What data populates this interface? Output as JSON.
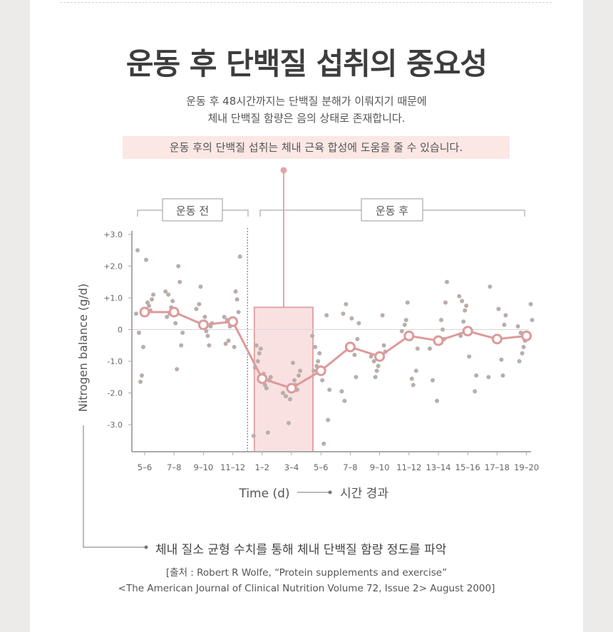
{
  "title": "운동 후 단백질 섭취의 중요성",
  "subtitle_line1": "운동 후 48시간까지는 단백질 분해가 이뤄지기 때문에",
  "subtitle_line2": "체내 단백질 함량은 음의 상태로 존재합니다.",
  "highlight": "운동 후의 단백질 섭취는 체내 근육 합성에 도움을 줄 수 있습니다.",
  "footer_note": "체내 질소 균형 수치를 통해 체내 단백질 함량 정도를 파악",
  "source_line1": "[출처 : Robert R Wolfe, “Protein supplements and exercise”",
  "source_line2": "<The American Journal of Clinical Nutrition Volume 72, Issue 2> August 2000]",
  "colors": {
    "accent": "#e2a6a6",
    "accent_line": "#dd9a9a",
    "box_fill": "#f9e1e1",
    "scatter": "#b8aeaa",
    "axis": "#aaaaaa"
  },
  "chart_data": {
    "type": "line",
    "ylabel": "Nitrogen balance (g/d)",
    "xlabel": "Time (d)",
    "xlabel_arrow_text": "시간 경과",
    "period_before": "운동 전",
    "period_after": "운동 후",
    "ylim": [
      -4.0,
      3.2
    ],
    "y_ticks": [
      {
        "value": 3,
        "label": "+3.0"
      },
      {
        "value": 2,
        "label": "+2.0"
      },
      {
        "value": 1,
        "label": "+1.0"
      },
      {
        "value": 0,
        "label": "0"
      },
      {
        "value": -1,
        "label": "-1.0"
      },
      {
        "value": -2,
        "label": "-2.0"
      },
      {
        "value": -3,
        "label": "-3.0"
      }
    ],
    "categories": [
      "5–6",
      "7–8",
      "9–10",
      "11–12",
      "1–2",
      "3–4",
      "5–6",
      "7–8",
      "9–10",
      "11–12",
      "13–14",
      "15–16",
      "17–18",
      "19–20"
    ],
    "before_count": 4,
    "highlighted_categories": [
      "1–2",
      "3–4"
    ],
    "highlight_box_top_value": 0.7,
    "grid": false,
    "series": [
      {
        "values": [
          0.55,
          0.55,
          0.15,
          0.25,
          -1.55,
          -1.85,
          -1.3,
          -0.55,
          -0.85,
          -0.2,
          -0.35,
          -0.05,
          -0.3,
          -0.2
        ]
      }
    ],
    "scatter": [
      [
        2.5,
        2.2,
        1.1,
        0.95,
        0.85,
        0.75,
        0.6,
        0.5,
        -0.1,
        -0.55,
        -1.45,
        -1.65
      ],
      [
        2.0,
        1.5,
        1.2,
        1.1,
        0.9,
        0.7,
        0.5,
        0.4,
        0.2,
        -0.1,
        -0.5,
        -1.25
      ],
      [
        1.35,
        0.8,
        0.65,
        0.4,
        0.2,
        0.1,
        -0.05,
        -0.2,
        -0.5
      ],
      [
        2.3,
        1.2,
        0.95,
        0.55,
        0.4,
        0.3,
        0.2,
        0.1,
        -0.35,
        -0.45,
        -0.55
      ],
      [
        -0.5,
        -0.6,
        -0.75,
        -1.0,
        -1.2,
        -1.4,
        -1.5,
        -1.6,
        -1.75,
        -1.85,
        -3.25,
        -3.35
      ],
      [
        -1.05,
        -1.3,
        -1.45,
        -1.6,
        -1.75,
        -1.9,
        -2.0,
        -2.1,
        -2.2,
        -2.95
      ],
      [
        0.45,
        -0.2,
        -0.55,
        -0.75,
        -1.0,
        -1.15,
        -1.3,
        -1.6,
        -1.9,
        -2.85,
        -3.6
      ],
      [
        0.8,
        0.5,
        0.35,
        0.2,
        -0.3,
        -0.5,
        -0.8,
        -1.5,
        -1.95,
        -2.25
      ],
      [
        0.45,
        -0.5,
        -0.7,
        -0.85,
        -1.0,
        -1.15,
        -1.3,
        -1.5
      ],
      [
        0.85,
        0.3,
        0.15,
        -0.05,
        -0.3,
        -0.6,
        -1.3,
        -1.55,
        -1.75
      ],
      [
        1.5,
        0.85,
        0.3,
        0.0,
        -0.3,
        -0.6,
        -1.6,
        -2.25
      ],
      [
        1.05,
        0.9,
        0.75,
        0.6,
        0.25,
        -0.2,
        -0.85,
        -1.45,
        -1.95
      ],
      [
        1.35,
        0.65,
        0.45,
        0.15,
        -0.25,
        -0.95,
        -1.45,
        -1.5
      ],
      [
        0.8,
        0.3,
        0.1,
        -0.1,
        -0.35,
        -0.55,
        -0.75,
        -1.0
      ]
    ]
  }
}
